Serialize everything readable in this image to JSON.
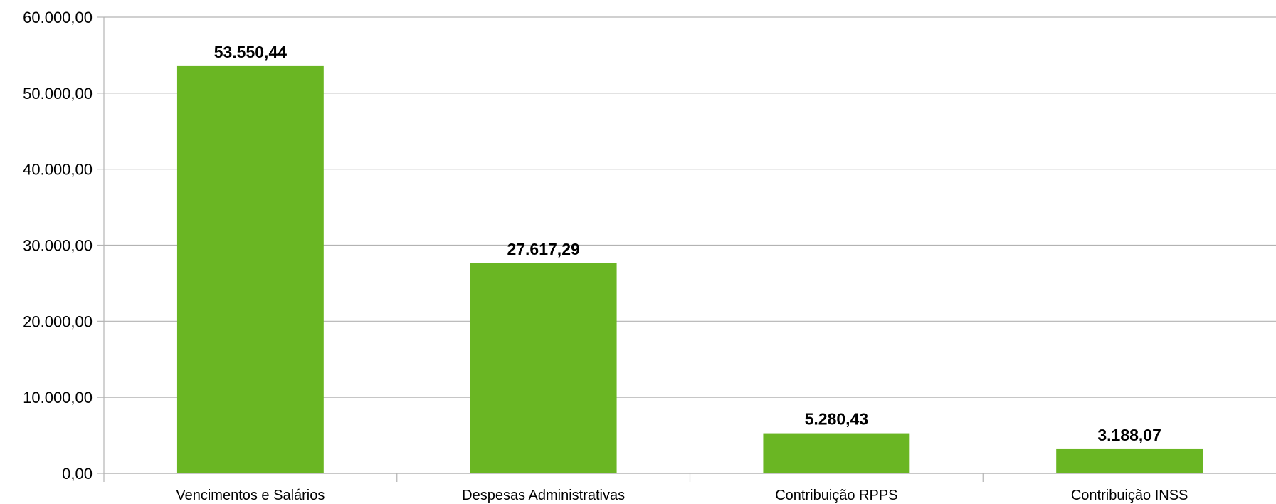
{
  "chart_data": {
    "type": "bar",
    "categories": [
      "Vencimentos e Salários",
      "Despesas Administrativas",
      "Contribuição RPPS",
      "Contribuição INSS"
    ],
    "values": [
      53550.44,
      27617.29,
      5280.43,
      3188.07
    ],
    "value_labels": [
      "53.550,44",
      "27.617,29",
      "5.280,43",
      "3.188,07"
    ],
    "ylim": [
      0,
      60000
    ],
    "yticks": [
      0,
      10000,
      20000,
      30000,
      40000,
      50000,
      60000
    ],
    "ytick_labels": [
      "0,00",
      "10.000,00",
      "20.000,00",
      "30.000,00",
      "40.000,00",
      "50.000,00",
      "60.000,00"
    ],
    "grid": true,
    "legend": "none",
    "bar_color": "#6ab623"
  }
}
